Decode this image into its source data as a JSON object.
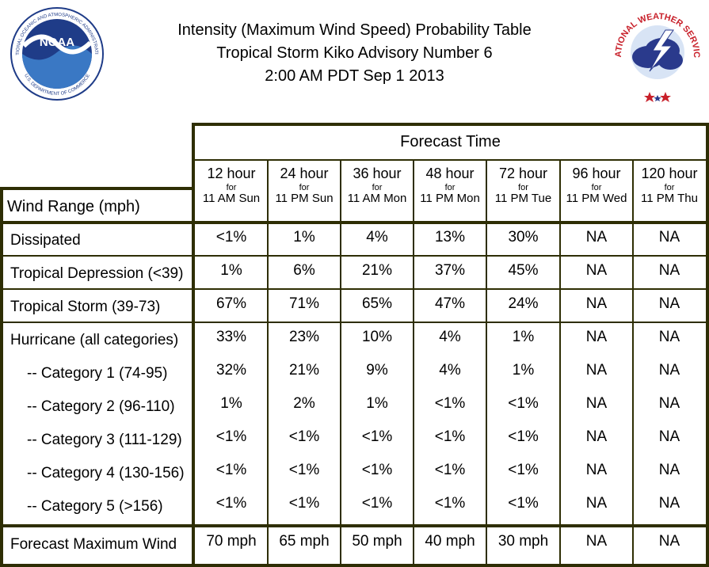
{
  "header": {
    "line1": "Intensity (Maximum Wind Speed) Probability Table",
    "line2": "Tropical Storm Kiko Advisory Number 6",
    "line3": "2:00 AM PDT Sep 1 2013"
  },
  "logos": {
    "noaa_text": "NOAA",
    "noaa_ring": "NATIONAL OCEANIC AND ATMOSPHERIC ADMINISTRATION",
    "noaa_ring_bottom": "U.S. DEPARTMENT OF COMMERCE",
    "nws_ring": "NATIONAL WEATHER SERVICE"
  },
  "table": {
    "forecast_time_label": "Forecast Time",
    "row_header_label": "Wind Range (mph)",
    "columns": [
      {
        "hour": "12 hour",
        "for": "for",
        "time": "11 AM Sun"
      },
      {
        "hour": "24 hour",
        "for": "for",
        "time": "11 PM Sun"
      },
      {
        "hour": "36 hour",
        "for": "for",
        "time": "11 AM Mon"
      },
      {
        "hour": "48 hour",
        "for": "for",
        "time": "11 PM Mon"
      },
      {
        "hour": "72 hour",
        "for": "for",
        "time": "11 PM Tue"
      },
      {
        "hour": "96 hour",
        "for": "for",
        "time": "11 PM Wed"
      },
      {
        "hour": "120 hour",
        "for": "for",
        "time": "11 PM Thu"
      }
    ],
    "rows": [
      {
        "label": "Dissipated",
        "values": [
          "<1%",
          "1%",
          "4%",
          "13%",
          "30%",
          "NA",
          "NA"
        ]
      },
      {
        "label": "Tropical Depression (<39)",
        "values": [
          "1%",
          "6%",
          "21%",
          "37%",
          "45%",
          "NA",
          "NA"
        ]
      },
      {
        "label": "Tropical Storm (39-73)",
        "values": [
          "67%",
          "71%",
          "65%",
          "47%",
          "24%",
          "NA",
          "NA"
        ]
      },
      {
        "label": "Hurricane (all categories)",
        "values": [
          "33%",
          "23%",
          "10%",
          "4%",
          "1%",
          "NA",
          "NA"
        ]
      },
      {
        "label": "-- Category 1 (74-95)",
        "values": [
          "32%",
          "21%",
          "9%",
          "4%",
          "1%",
          "NA",
          "NA"
        ]
      },
      {
        "label": "-- Category 2 (96-110)",
        "values": [
          "1%",
          "2%",
          "1%",
          "<1%",
          "<1%",
          "NA",
          "NA"
        ]
      },
      {
        "label": "-- Category 3 (111-129)",
        "values": [
          "<1%",
          "<1%",
          "<1%",
          "<1%",
          "<1%",
          "NA",
          "NA"
        ]
      },
      {
        "label": "-- Category 4 (130-156)",
        "values": [
          "<1%",
          "<1%",
          "<1%",
          "<1%",
          "<1%",
          "NA",
          "NA"
        ]
      },
      {
        "label": "-- Category 5 (>156)",
        "values": [
          "<1%",
          "<1%",
          "<1%",
          "<1%",
          "<1%",
          "NA",
          "NA"
        ]
      },
      {
        "label": "Forecast Maximum Wind",
        "values": [
          "70 mph",
          "65 mph",
          "50 mph",
          "40 mph",
          "30 mph",
          "NA",
          "NA"
        ]
      }
    ]
  },
  "colors": {
    "grid_line": "#2e2e04",
    "noaa_blue": "#1f3c88",
    "noaa_light": "#3a78c4",
    "nws_red": "#c8202a",
    "nws_blue": "#2a3a8c"
  }
}
